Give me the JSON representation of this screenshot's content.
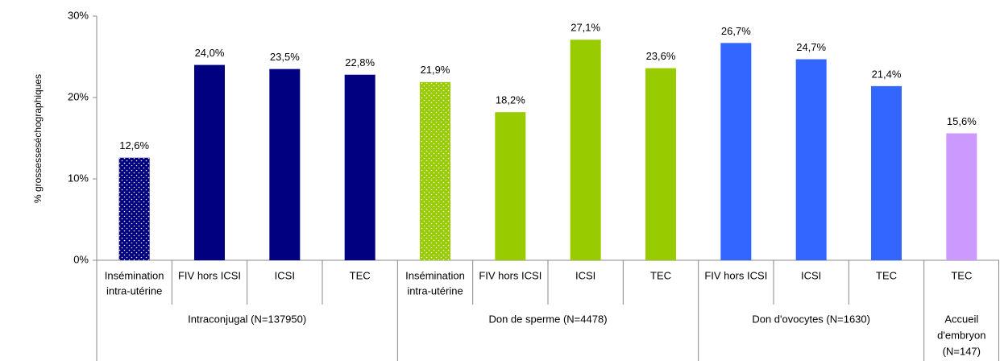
{
  "chart_data": {
    "type": "bar",
    "y_label": "% grossesseséchographiques",
    "ylim": [
      0,
      30
    ],
    "yticks": [
      {
        "value": 0,
        "label": "0%"
      },
      {
        "value": 10,
        "label": "10%"
      },
      {
        "value": 20,
        "label": "20%"
      },
      {
        "value": 30,
        "label": "30%"
      }
    ],
    "groups": [
      {
        "name": [
          "Intraconjugal (N=137950)"
        ],
        "categories": [
          [
            "Insémination",
            "intra-utérine"
          ],
          [
            "FIV hors ICSI"
          ],
          [
            "ICSI"
          ],
          [
            "TEC"
          ]
        ],
        "values": [
          12.6,
          24.0,
          23.5,
          22.8
        ],
        "value_labels": [
          "12,6%",
          "24,0%",
          "23,5%",
          "22,8%"
        ],
        "color": "#000080",
        "dotted": [
          true,
          false,
          false,
          false
        ]
      },
      {
        "name": [
          "Don de sperme (N=4478)"
        ],
        "categories": [
          [
            "Insémination",
            "intra-utérine"
          ],
          [
            "FIV hors ICSI"
          ],
          [
            "ICSI"
          ],
          [
            "TEC"
          ]
        ],
        "values": [
          21.9,
          18.2,
          27.1,
          23.6
        ],
        "value_labels": [
          "21,9%",
          "18,2%",
          "27,1%",
          "23,6%"
        ],
        "color": "#99cc00",
        "dotted": [
          true,
          false,
          false,
          false
        ]
      },
      {
        "name": [
          "Don d'ovocytes (N=1630)"
        ],
        "categories": [
          [
            "FIV hors ICSI"
          ],
          [
            "ICSI"
          ],
          [
            "TEC"
          ]
        ],
        "values": [
          26.7,
          24.7,
          21.4
        ],
        "value_labels": [
          "26,7%",
          "24,7%",
          "21,4%"
        ],
        "color": "#3366ff",
        "dotted": [
          false,
          false,
          false
        ]
      },
      {
        "name": [
          "Accueil",
          "d'embryon",
          "(N=147)"
        ],
        "categories": [
          [
            "TEC"
          ]
        ],
        "values": [
          15.6
        ],
        "value_labels": [
          "15,6%"
        ],
        "color": "#cc99ff",
        "dotted": [
          false
        ]
      }
    ]
  }
}
